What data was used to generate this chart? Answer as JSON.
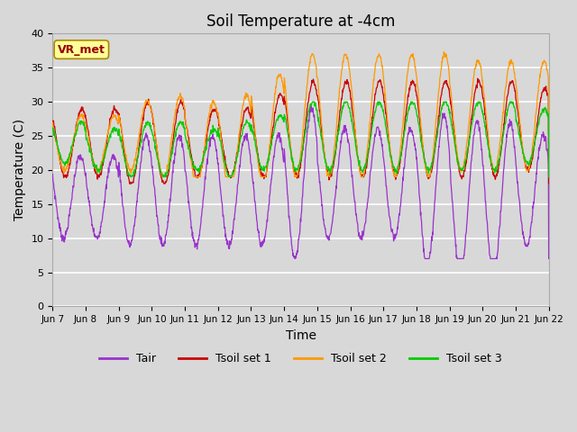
{
  "title": "Soil Temperature at -4cm",
  "xlabel": "Time",
  "ylabel": "Temperature (C)",
  "ylim": [
    0,
    40
  ],
  "yticks": [
    0,
    5,
    10,
    15,
    20,
    25,
    30,
    35,
    40
  ],
  "x_tick_labels": [
    "Jun 7",
    "Jun 8",
    "Jun 9",
    "Jun 10",
    "Jun 11",
    "Jun 12",
    "Jun 13",
    "Jun 14",
    "Jun 15",
    "Jun 16",
    "Jun 17",
    "Jun 18",
    "Jun 19",
    "Jun 20",
    "Jun 21",
    "Jun 22"
  ],
  "legend_labels": [
    "Tair",
    "Tsoil set 1",
    "Tsoil set 2",
    "Tsoil set 3"
  ],
  "legend_colors": [
    "#9933cc",
    "#cc0000",
    "#ff9900",
    "#00cc00"
  ],
  "background_color": "#d8d8d8",
  "plot_bg_color": "#d8d8d8",
  "annotation_text": "VR_met",
  "annotation_color": "#990000",
  "annotation_bg": "#ffff99",
  "grid_color": "#ffffff",
  "title_fontsize": 12,
  "axis_label_fontsize": 10,
  "tick_fontsize": 8,
  "n_days": 15,
  "pts_per_day": 96
}
